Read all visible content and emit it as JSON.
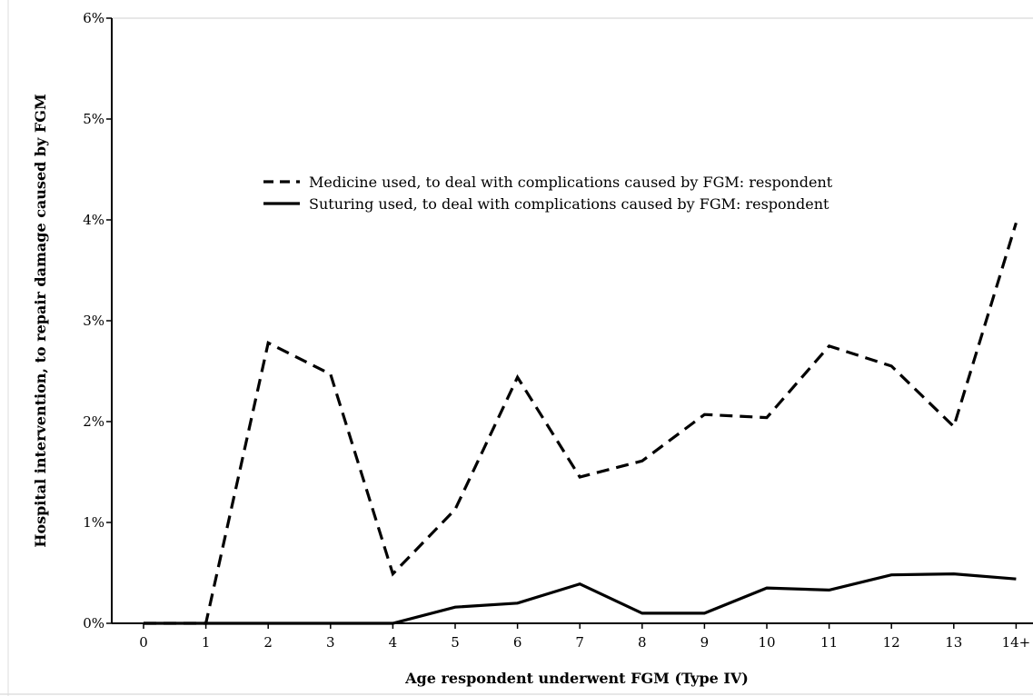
{
  "chart_data": {
    "type": "line",
    "xlabel": "Age respondent underwent FGM (Type IV)",
    "ylabel": "Hospital intervention, to repair damage caused by FGM",
    "categories": [
      "0",
      "1",
      "2",
      "3",
      "4",
      "5",
      "6",
      "7",
      "8",
      "9",
      "10",
      "11",
      "12",
      "13",
      "14+"
    ],
    "y_ticks": [
      "0%",
      "1%",
      "2%",
      "3%",
      "4%",
      "5%",
      "6%"
    ],
    "ylim": [
      0,
      6
    ],
    "grid": false,
    "legend_position": "top-right",
    "series": [
      {
        "name": "Medicine used, to deal with complications caused by FGM: respondent",
        "style": "dashed",
        "color": "#000000",
        "values": [
          0,
          0,
          2.78,
          2.47,
          0.49,
          1.13,
          2.44,
          1.45,
          1.61,
          2.07,
          2.04,
          2.75,
          2.55,
          1.95,
          3.97
        ]
      },
      {
        "name": "Suturing used, to deal with complications caused by FGM: respondent",
        "style": "solid",
        "color": "#000000",
        "values": [
          0,
          0,
          0,
          0,
          0,
          0.16,
          0.2,
          0.39,
          0.1,
          0.1,
          0.35,
          0.33,
          0.48,
          0.49,
          0.44
        ]
      }
    ]
  }
}
